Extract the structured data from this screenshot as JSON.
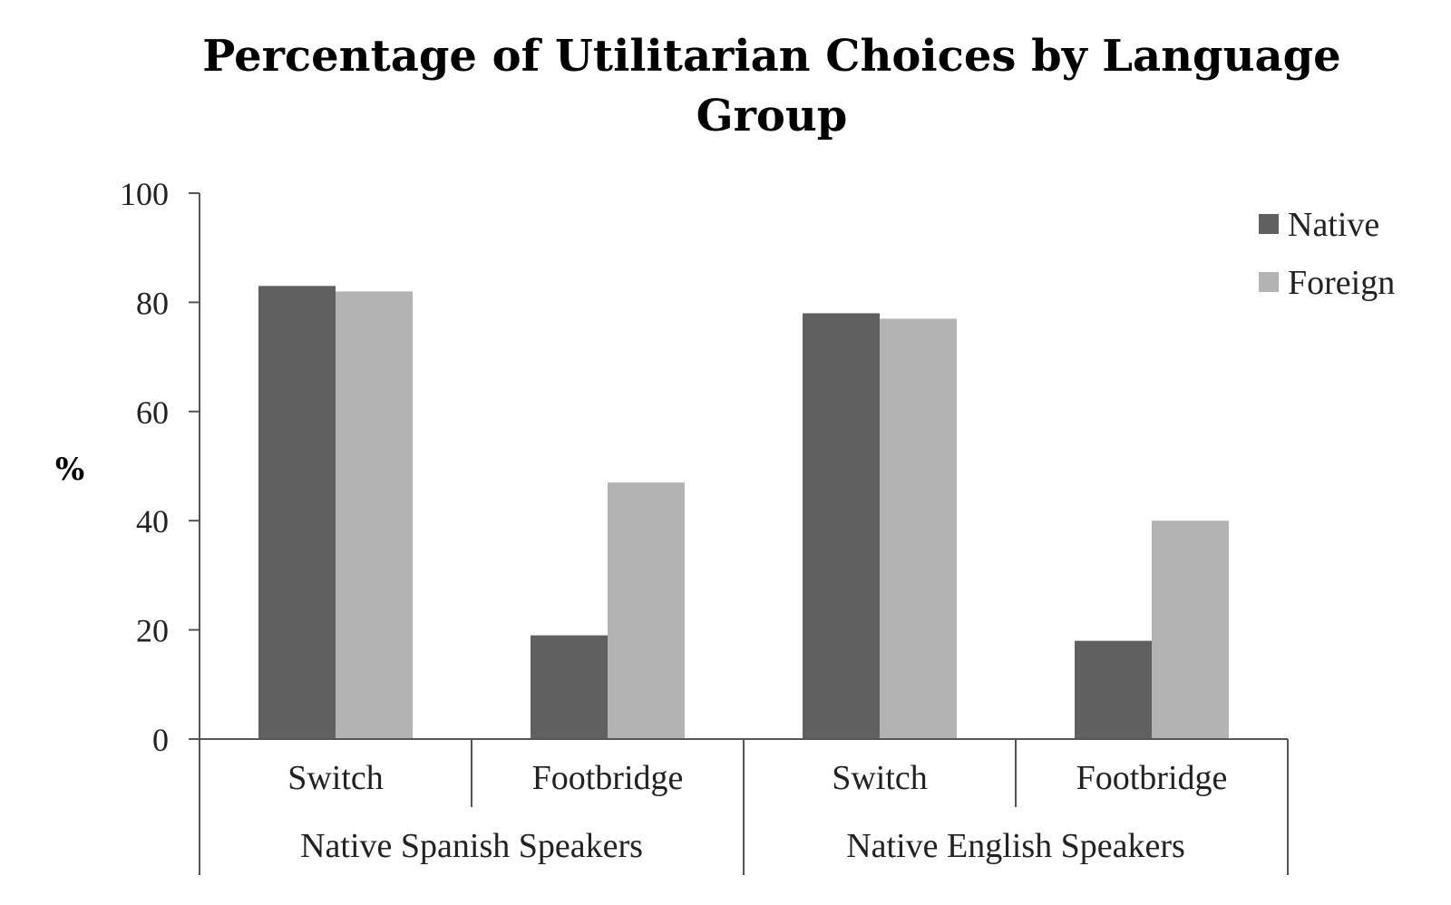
{
  "chart_data": {
    "type": "bar",
    "title_lines": [
      "Percentage of Utilitarian Choices by Language",
      "Group"
    ],
    "ylabel": "%",
    "xlabel": "",
    "ylim": [
      0,
      100
    ],
    "yticks": [
      0,
      20,
      40,
      60,
      80,
      100
    ],
    "grid": false,
    "legend_position": "top-right",
    "categories": [
      "Switch",
      "Footbridge",
      "Switch",
      "Footbridge"
    ],
    "groups": [
      {
        "label": "Native Spanish Speakers",
        "categories": [
          "Switch",
          "Footbridge"
        ]
      },
      {
        "label": "Native English Speakers",
        "categories": [
          "Switch",
          "Footbridge"
        ]
      }
    ],
    "series": [
      {
        "name": "Native",
        "color": "#606060",
        "values": [
          83,
          19,
          78,
          18
        ]
      },
      {
        "name": "Foreign",
        "color": "#b3b3b3",
        "values": [
          82,
          47,
          77,
          40
        ]
      }
    ]
  }
}
